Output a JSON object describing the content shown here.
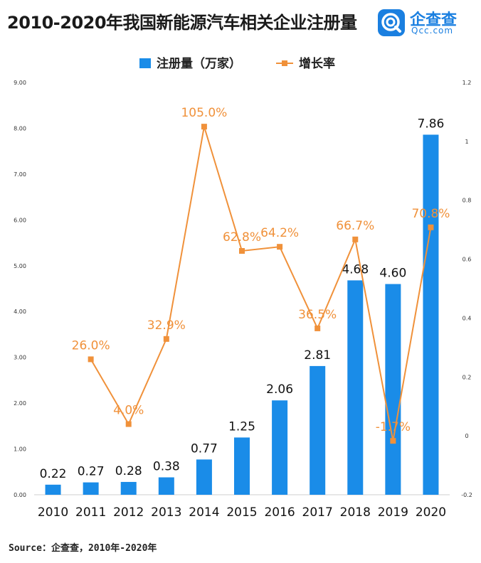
{
  "header": {
    "title": "2010-2020年我国新能源汽车相关企业注册量",
    "logo_text": "企查查",
    "logo_sub": "Qcc.com"
  },
  "footer": {
    "source": "Source：企查查，2010年-2020年"
  },
  "colors": {
    "bar": "#1a8ce8",
    "line": "#f0913a",
    "brand": "#1a7fe0"
  },
  "chart_data": {
    "type": "bar",
    "categories": [
      "2010",
      "2011",
      "2012",
      "2013",
      "2014",
      "2015",
      "2016",
      "2017",
      "2018",
      "2019",
      "2020"
    ],
    "series": [
      {
        "name": "注册量（万家）",
        "type": "bar",
        "axis": "left",
        "values": [
          0.22,
          0.27,
          0.28,
          0.38,
          0.77,
          1.25,
          2.06,
          2.81,
          4.68,
          4.6,
          7.86
        ],
        "labels": [
          "0.22",
          "0.27",
          "0.28",
          "0.38",
          "0.77",
          "1.25",
          "2.06",
          "2.81",
          "4.68",
          "4.60",
          "7.86"
        ]
      },
      {
        "name": "增长率",
        "type": "line",
        "axis": "right",
        "values": [
          null,
          0.26,
          0.04,
          0.329,
          1.05,
          0.628,
          0.642,
          0.365,
          0.667,
          -0.017,
          0.708
        ],
        "labels": [
          "",
          "26.0%",
          "4.0%",
          "32.9%",
          "105.0%",
          "62.8%",
          "64.2%",
          "36.5%",
          "66.7%",
          "-1.7%",
          "70.8%"
        ]
      }
    ],
    "y_left": {
      "ylim": [
        0,
        9
      ],
      "ticks": [
        "0.00",
        "1.00",
        "2.00",
        "3.00",
        "4.00",
        "5.00",
        "6.00",
        "7.00",
        "8.00",
        "9.00"
      ]
    },
    "y_right": {
      "ylim": [
        -0.2,
        1.2
      ],
      "ticks": [
        "-0.2",
        "0",
        "0.2",
        "0.4",
        "0.6",
        "0.8",
        "1",
        "1.2"
      ]
    },
    "legend_position": "top-center",
    "grid": false
  }
}
